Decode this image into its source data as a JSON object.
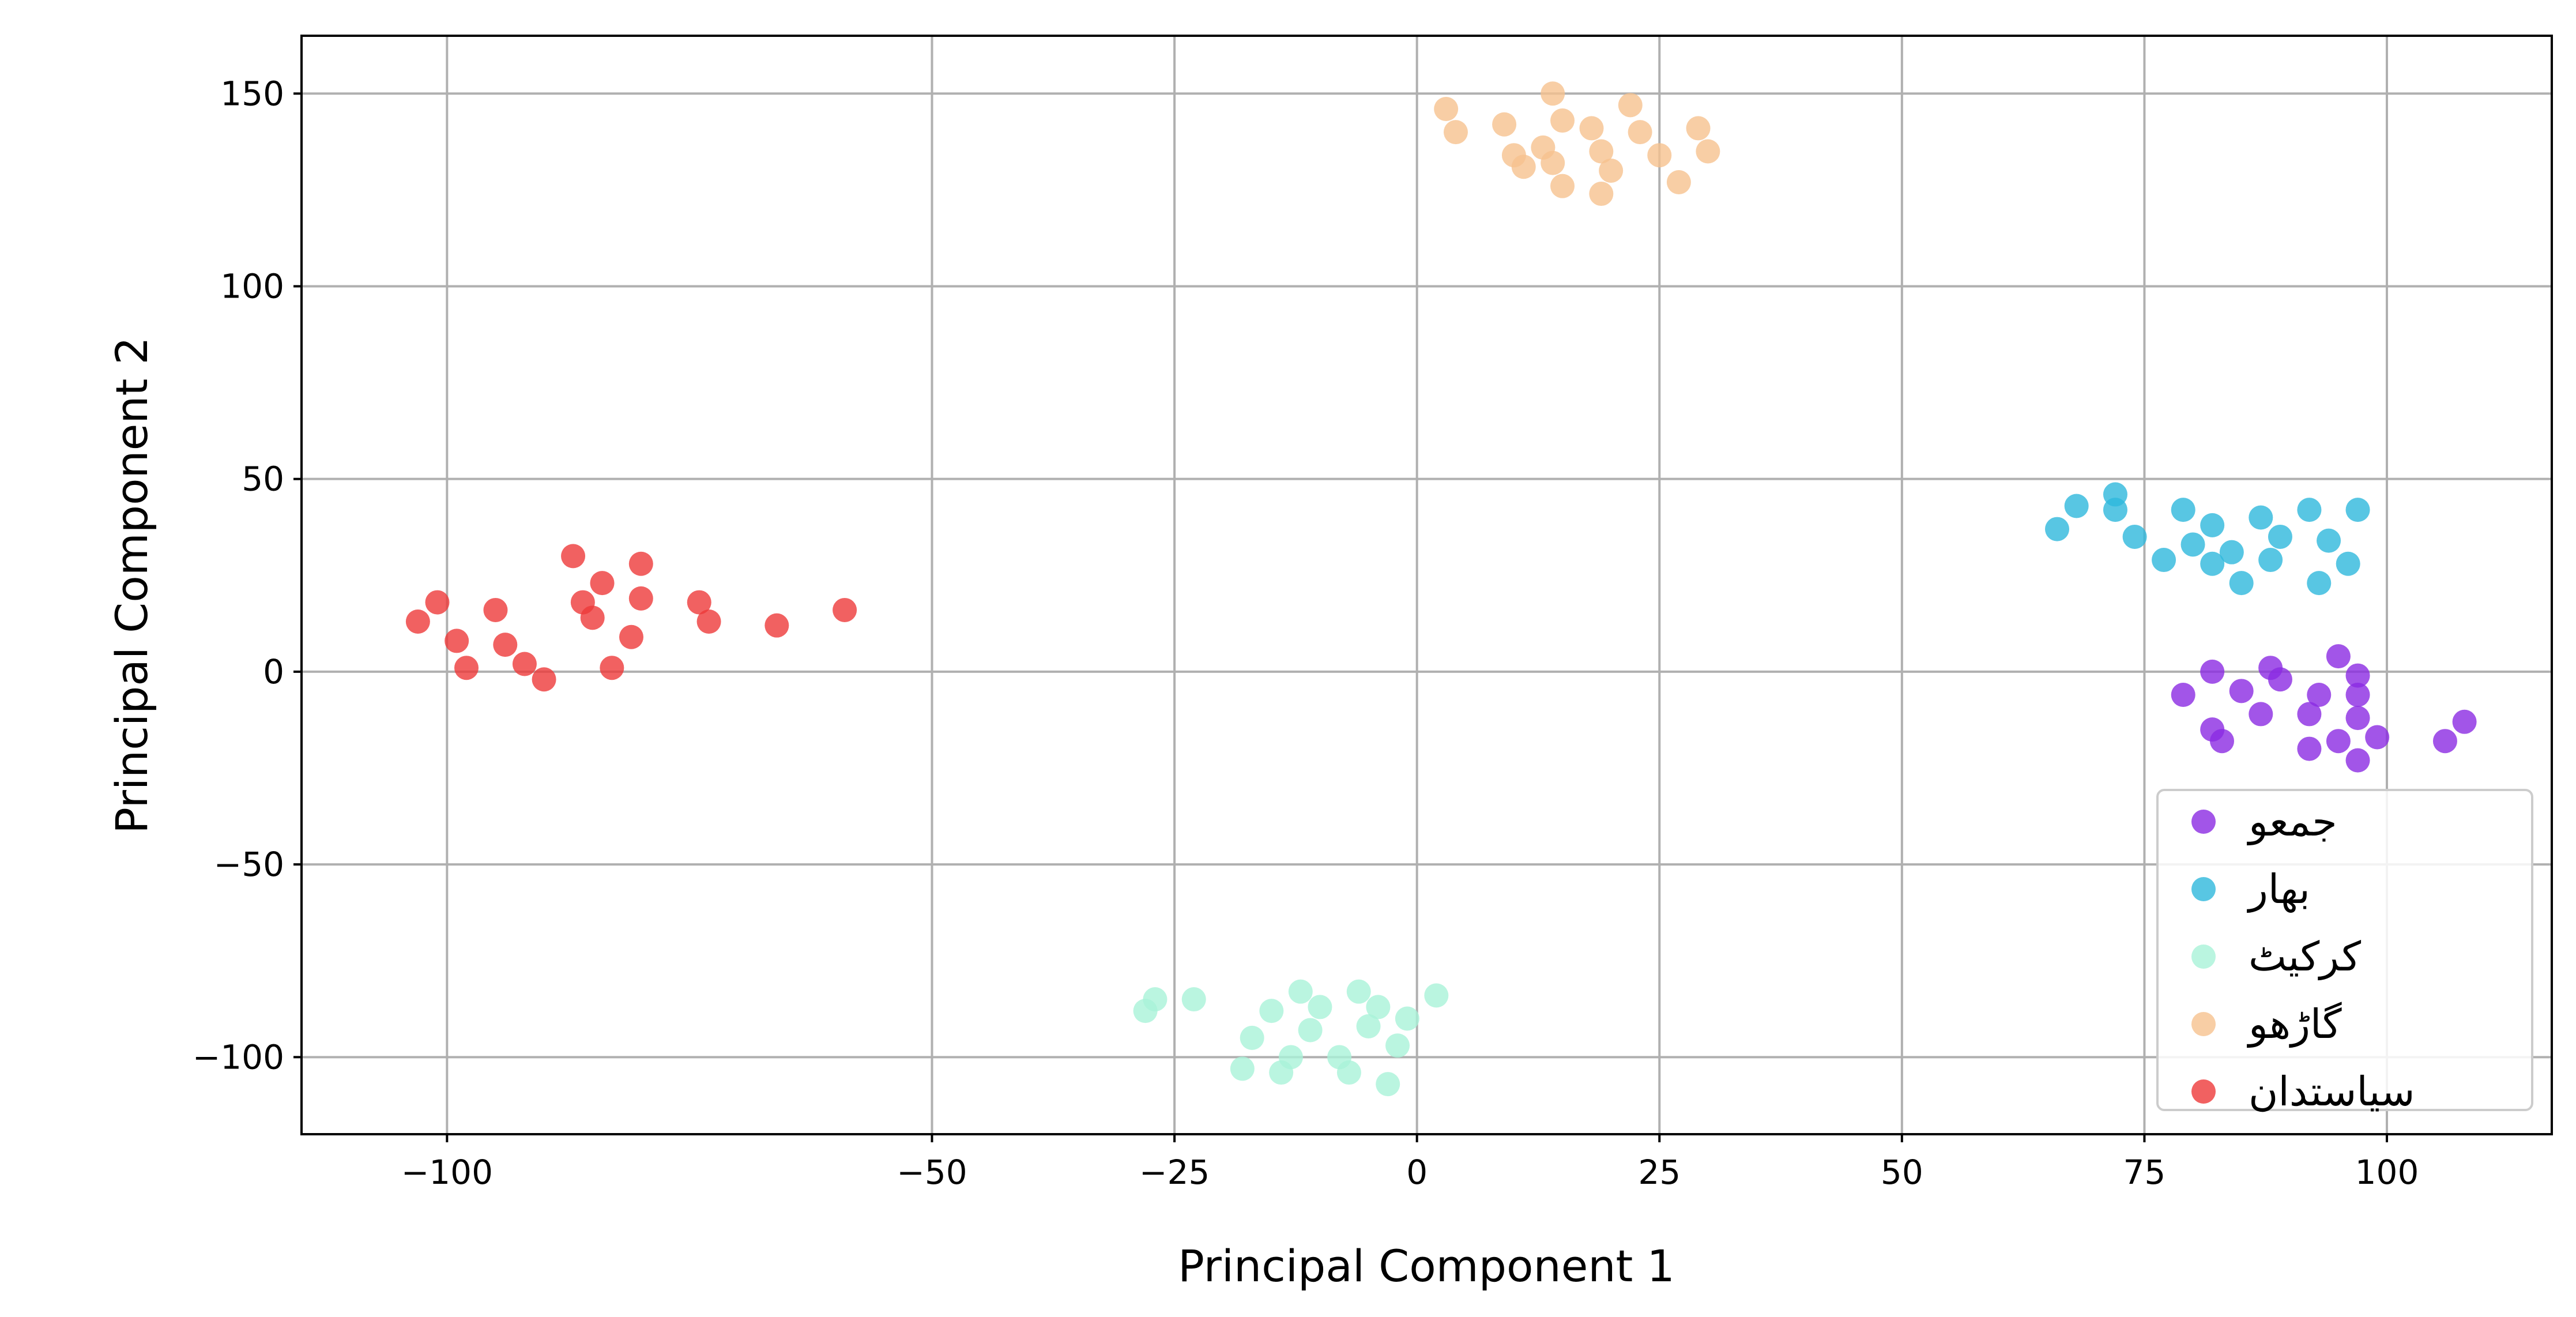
{
  "chart_data": {
    "type": "scatter",
    "xlabel": "Principal Component 1",
    "ylabel": "Principal Component 2",
    "xlim": [
      -115,
      117
    ],
    "ylim": [
      -120,
      165
    ],
    "xticks": [
      -100,
      -50,
      -25,
      0,
      25,
      50,
      75,
      100
    ],
    "xtick_labels": [
      "−100",
      "−50",
      "−25",
      "0",
      "25",
      "50",
      "75",
      "100"
    ],
    "yticks": [
      150,
      100,
      50,
      0,
      -50,
      -100
    ],
    "ytick_labels": [
      "150",
      "100",
      "50",
      "0",
      "−50",
      "−100"
    ],
    "grid": true,
    "legend_position": "bottom-right",
    "series": [
      {
        "name": "جمعو",
        "color": "#8b2be2",
        "points": [
          [
            79,
            -6
          ],
          [
            82,
            0
          ],
          [
            85,
            -5
          ],
          [
            88,
            1
          ],
          [
            89,
            -2
          ],
          [
            92,
            -11
          ],
          [
            93,
            -6
          ],
          [
            95,
            4
          ],
          [
            97,
            -1
          ],
          [
            97,
            -6
          ],
          [
            97,
            -12
          ],
          [
            82,
            -15
          ],
          [
            83,
            -18
          ],
          [
            87,
            -11
          ],
          [
            92,
            -20
          ],
          [
            95,
            -18
          ],
          [
            97,
            -23
          ],
          [
            99,
            -17
          ],
          [
            106,
            -18
          ],
          [
            108,
            -13
          ]
        ]
      },
      {
        "name": "بهار",
        "color": "#2eb8dc",
        "points": [
          [
            66,
            37
          ],
          [
            68,
            43
          ],
          [
            72,
            46
          ],
          [
            72,
            42
          ],
          [
            74,
            35
          ],
          [
            77,
            29
          ],
          [
            79,
            42
          ],
          [
            80,
            33
          ],
          [
            82,
            28
          ],
          [
            82,
            38
          ],
          [
            84,
            31
          ],
          [
            85,
            23
          ],
          [
            87,
            40
          ],
          [
            88,
            29
          ],
          [
            89,
            35
          ],
          [
            92,
            42
          ],
          [
            93,
            23
          ],
          [
            94,
            34
          ],
          [
            96,
            28
          ],
          [
            97,
            42
          ]
        ]
      },
      {
        "name": "کرکیٹ",
        "color": "#a9f2d8",
        "points": [
          [
            -28,
            -88
          ],
          [
            -27,
            -85
          ],
          [
            -23,
            -85
          ],
          [
            -18,
            -103
          ],
          [
            -17,
            -95
          ],
          [
            -15,
            -88
          ],
          [
            -14,
            -104
          ],
          [
            -13,
            -100
          ],
          [
            -12,
            -83
          ],
          [
            -11,
            -93
          ],
          [
            -10,
            -87
          ],
          [
            -8,
            -100
          ],
          [
            -7,
            -104
          ],
          [
            -6,
            -83
          ],
          [
            -5,
            -92
          ],
          [
            -4,
            -87
          ],
          [
            -3,
            -107
          ],
          [
            -2,
            -97
          ],
          [
            -1,
            -90
          ],
          [
            2,
            -84
          ]
        ]
      },
      {
        "name": "گاڑھو",
        "color": "#f6c28e",
        "points": [
          [
            3,
            146
          ],
          [
            4,
            140
          ],
          [
            9,
            142
          ],
          [
            10,
            134
          ],
          [
            11,
            131
          ],
          [
            13,
            136
          ],
          [
            14,
            150
          ],
          [
            14,
            132
          ],
          [
            15,
            143
          ],
          [
            15,
            126
          ],
          [
            18,
            141
          ],
          [
            19,
            135
          ],
          [
            19,
            124
          ],
          [
            20,
            130
          ],
          [
            22,
            147
          ],
          [
            23,
            140
          ],
          [
            25,
            134
          ],
          [
            27,
            127
          ],
          [
            29,
            141
          ],
          [
            30,
            135
          ]
        ]
      },
      {
        "name": "سیاستدان",
        "color": "#ee3a3a",
        "points": [
          [
            -103,
            13
          ],
          [
            -101,
            18
          ],
          [
            -99,
            8
          ],
          [
            -98,
            1
          ],
          [
            -95,
            16
          ],
          [
            -94,
            7
          ],
          [
            -92,
            2
          ],
          [
            -90,
            -2
          ],
          [
            -87,
            30
          ],
          [
            -86,
            18
          ],
          [
            -85,
            14
          ],
          [
            -84,
            23
          ],
          [
            -83,
            1
          ],
          [
            -81,
            9
          ],
          [
            -80,
            28
          ],
          [
            -80,
            19
          ],
          [
            -74,
            18
          ],
          [
            -73,
            13
          ],
          [
            -66,
            12
          ],
          [
            -59,
            16
          ]
        ]
      }
    ]
  }
}
